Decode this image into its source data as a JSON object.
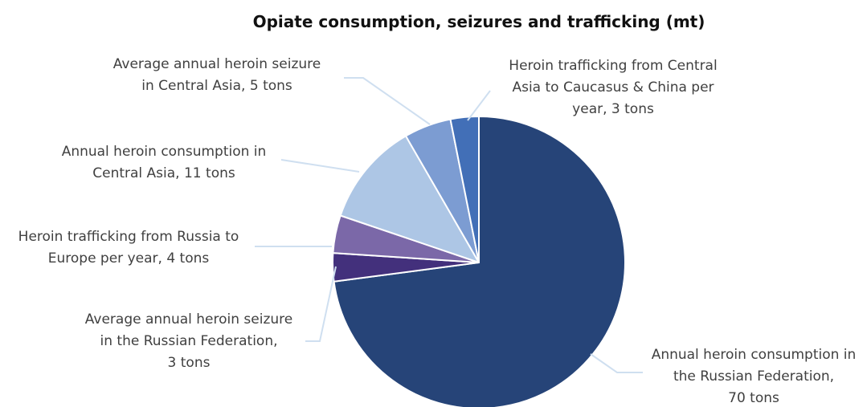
{
  "chart_data": {
    "type": "pie",
    "title": "Opiate consumption, seizures and trafficking (mt)",
    "slices": [
      {
        "value": 70,
        "label_lines": [
          "Annual heroin consumption in",
          "the Russian Federation,",
          "70 tons"
        ],
        "color": "#264478"
      },
      {
        "value": 3,
        "label_lines": [
          "Average annual heroin seizure",
          "in the Russian Federation,",
          "3 tons"
        ],
        "color": "#43307c"
      },
      {
        "value": 4,
        "label_lines": [
          "Heroin trafficking from Russia to",
          "Europe per year, 4 tons"
        ],
        "color": "#7b68a8"
      },
      {
        "value": 11,
        "label_lines": [
          "Annual heroin consumption in",
          "Central Asia, 11 tons"
        ],
        "color": "#adc6e5"
      },
      {
        "value": 5,
        "label_lines": [
          "Average annual heroin seizure",
          "in Central Asia, 5 tons"
        ],
        "color": "#7c9cd2"
      },
      {
        "value": 3,
        "label_lines": [
          "Heroin trafficking from Central",
          "Asia to Caucasus & China per",
          "year, 3 tons"
        ],
        "color": "#426fb7"
      }
    ]
  }
}
